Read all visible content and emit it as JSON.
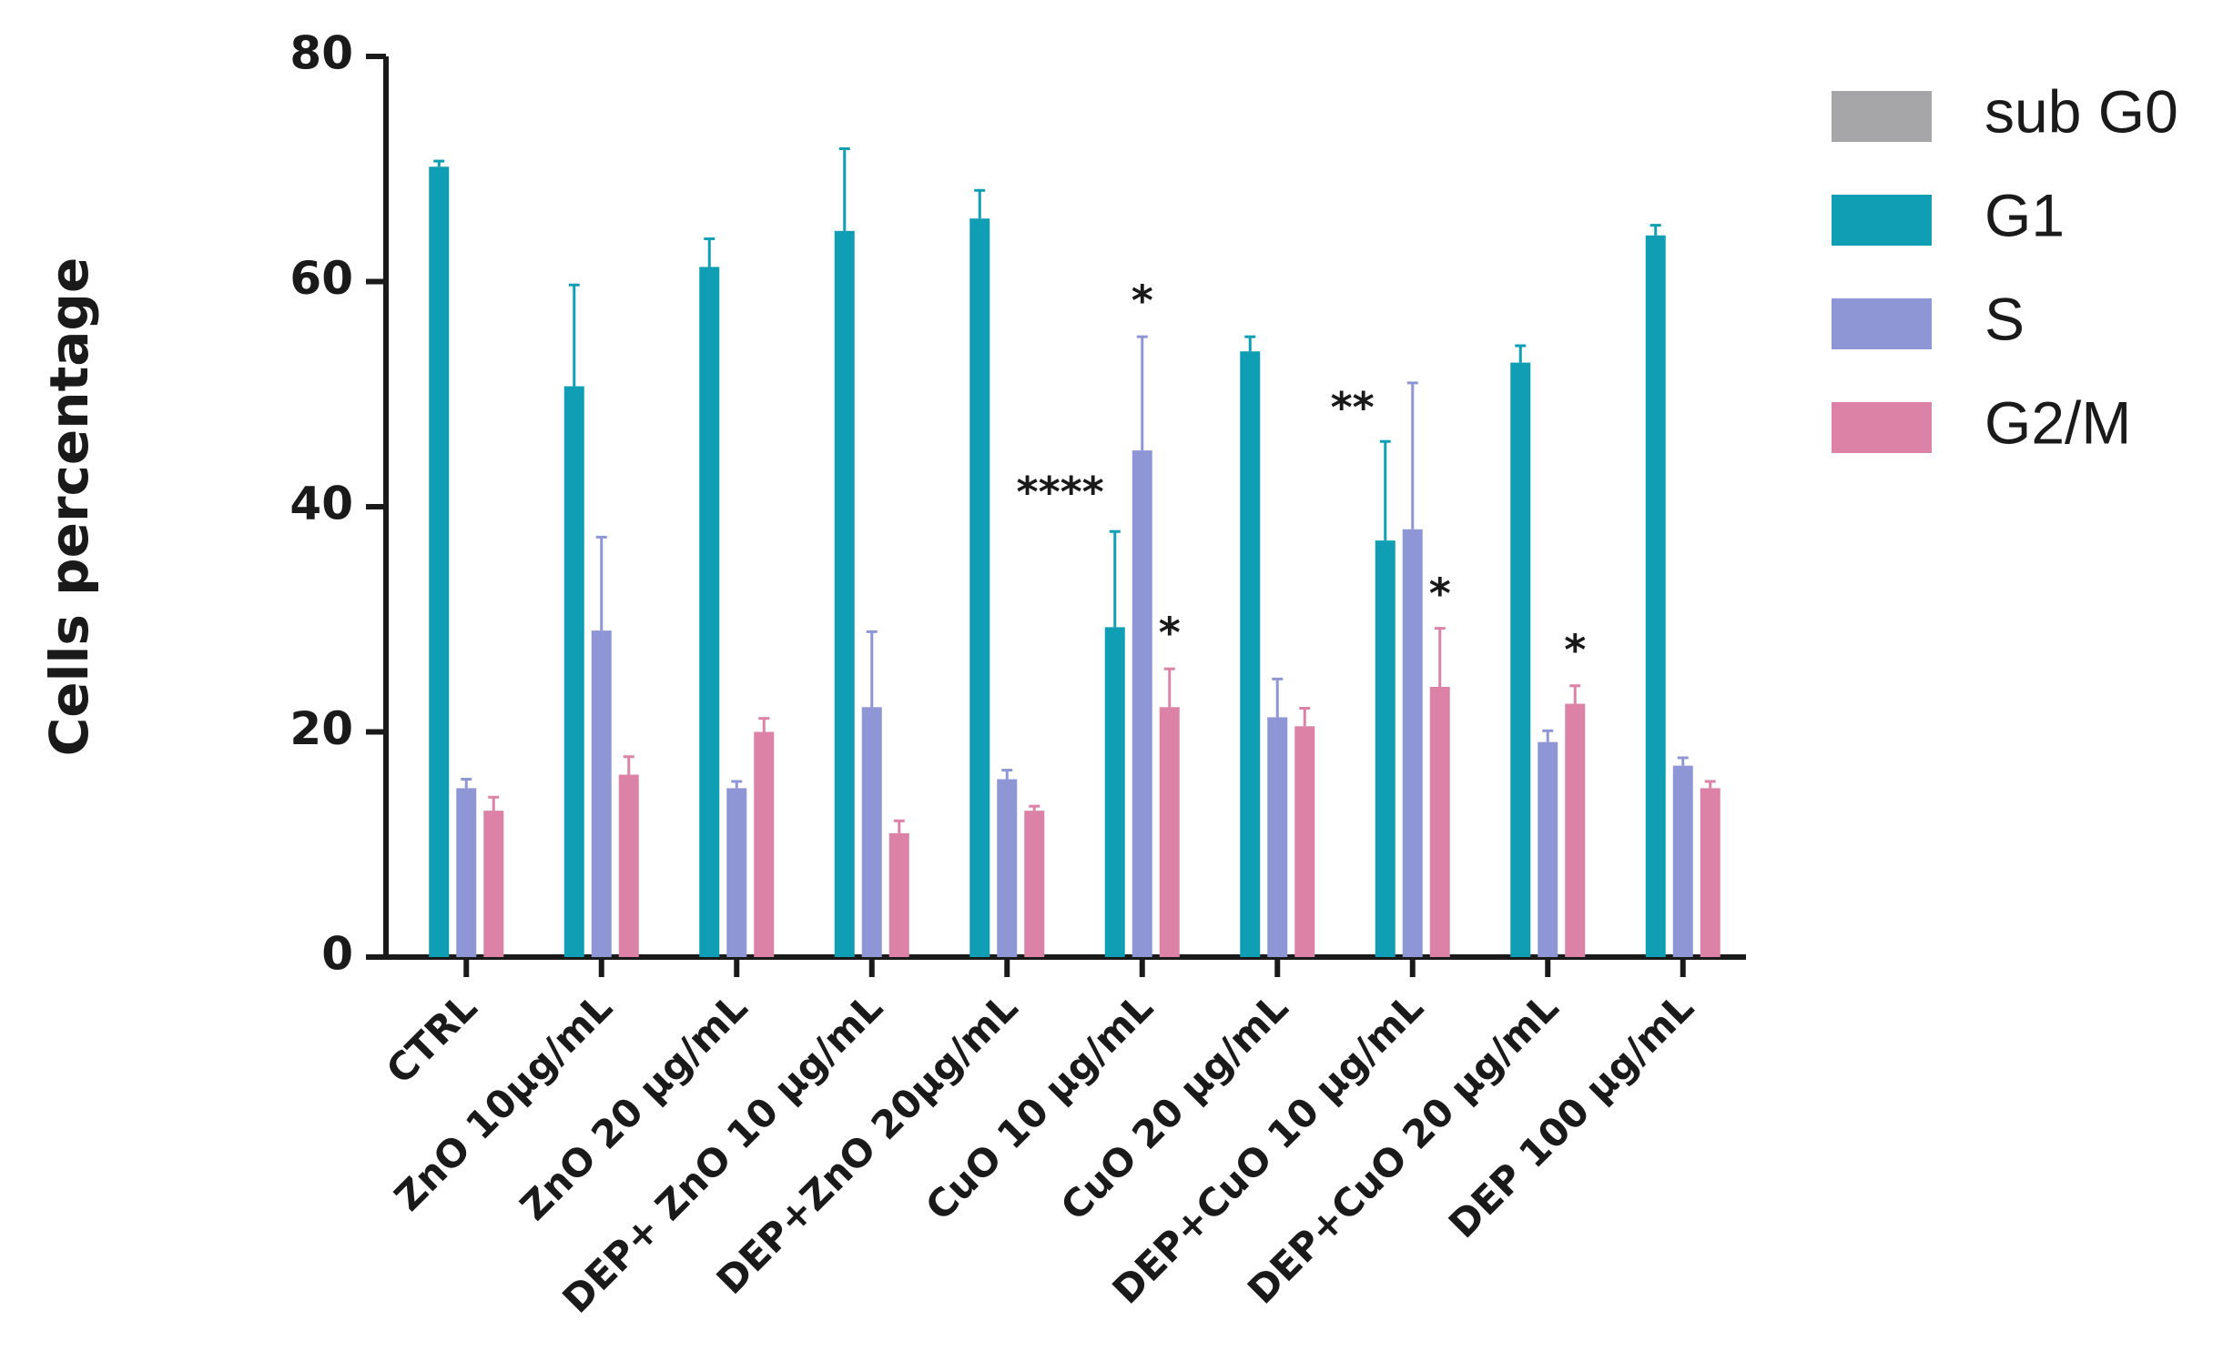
{
  "chart_data": {
    "type": "bar",
    "title": "",
    "xlabel": "",
    "ylabel": "Cells percentage",
    "ylim": [
      0,
      80
    ],
    "yticks": [
      "0",
      "20",
      "40",
      "60",
      "80"
    ],
    "categories": [
      "CTRL",
      "ZnO 10μg/mL",
      "ZnO 20 μg/mL",
      "DEP+ ZnO 10 μg/mL",
      "DEP+ZnO 20μg/mL",
      "CuO 10 μg/mL",
      "CuO 20 μg/mL",
      "DEP+CuO 10 μg/mL",
      "DEP+CuO 20 μg/mL",
      "DEP  100 μg/mL"
    ],
    "series": [
      {
        "name": "sub G0",
        "color": "#a6a6a8",
        "values": [
          0,
          0,
          0,
          0,
          0,
          0,
          0,
          0,
          0,
          0
        ],
        "errors": [
          0,
          0,
          0,
          0,
          0,
          0,
          0,
          0,
          0,
          0
        ]
      },
      {
        "name": "G1",
        "color": "#0f9eb3",
        "values": [
          70.2,
          50.7,
          61.3,
          64.5,
          65.6,
          29.3,
          53.8,
          37,
          52.8,
          64.1
        ],
        "errors": [
          0.5,
          9,
          2.5,
          7.3,
          2.5,
          8.5,
          1.3,
          8.8,
          1.5,
          0.9
        ]
      },
      {
        "name": "S",
        "color": "#8f96d6",
        "values": [
          15,
          29,
          15,
          22.2,
          15.8,
          45,
          21.3,
          38,
          19.1,
          17
        ],
        "errors": [
          0.8,
          8.3,
          0.6,
          6.7,
          0.8,
          10.1,
          3.4,
          13,
          1,
          0.7
        ]
      },
      {
        "name": "G2/M",
        "color": "#dc82a6",
        "values": [
          13,
          16.2,
          20,
          11,
          13,
          22.2,
          20.5,
          24,
          22.5,
          15
        ],
        "errors": [
          1.2,
          1.6,
          1.2,
          1.1,
          0.4,
          3.4,
          1.6,
          5.2,
          1.6,
          0.6
        ]
      }
    ],
    "annotations": [
      {
        "text": "****",
        "category": 5,
        "series": 1,
        "value": 40
      },
      {
        "text": "*",
        "category": 5,
        "series": 2,
        "value": 57
      },
      {
        "text": "*",
        "category": 5,
        "series": 3,
        "value": 27.5
      },
      {
        "text": "**",
        "category": 7,
        "series": 1,
        "value": 47.5
      },
      {
        "text": "*",
        "category": 7,
        "series": 3,
        "value": 31
      },
      {
        "text": "*",
        "category": 8,
        "series": 3,
        "value": 26
      }
    ],
    "legend": {
      "position": "top-right"
    },
    "grid": false
  }
}
